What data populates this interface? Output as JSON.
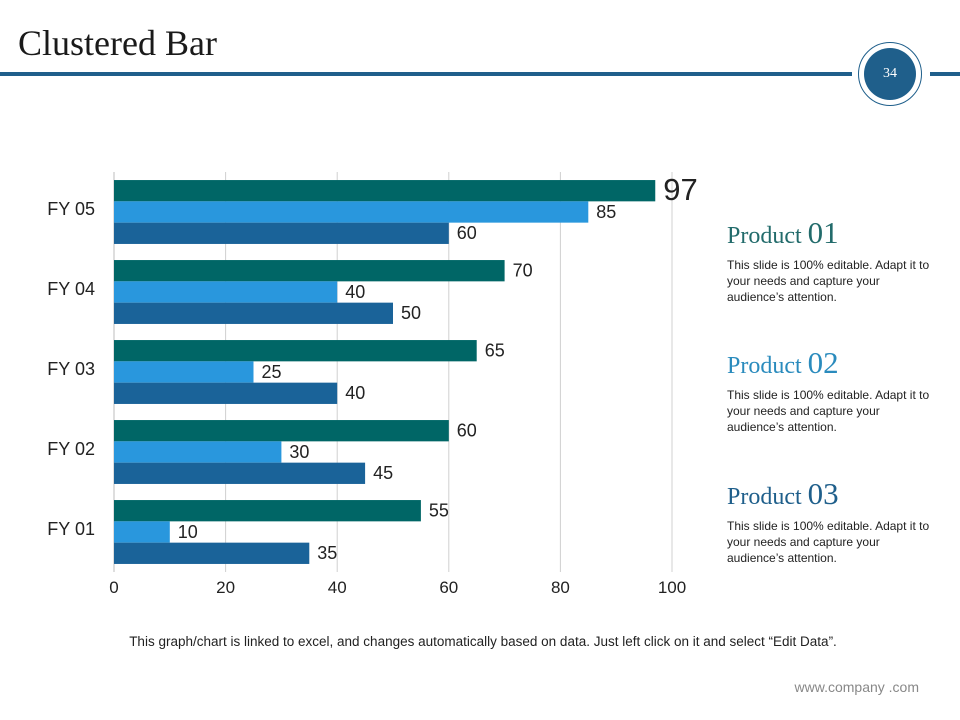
{
  "slide": {
    "title": "Clustered Bar",
    "page_number": "34",
    "footnote": "This graph/chart is linked to excel, and changes automatically based on data. Just left click on it and select “Edit Data”.",
    "website": "www.company .com"
  },
  "products": [
    {
      "name": "Product",
      "number": "01",
      "description": "This slide is 100% editable. Adapt it to your needs and capture your audience’s attention.",
      "color": "#226b6b"
    },
    {
      "name": "Product",
      "number": "02",
      "description": "This slide is 100% editable. Adapt it to your needs and capture your audience’s attention.",
      "color": "#2a8bbd"
    },
    {
      "name": "Product",
      "number": "03",
      "description": "This slide is 100% editable. Adapt it to your needs and capture your audience’s attention.",
      "color": "#1f5f8b"
    }
  ],
  "chart_data": {
    "type": "bar",
    "orientation": "horizontal",
    "title": "",
    "xlabel": "",
    "ylabel": "",
    "categories": [
      "FY 01",
      "FY 02",
      "FY 03",
      "FY 04",
      "FY 05"
    ],
    "series": [
      {
        "name": "Product 01",
        "color": "#006666",
        "values": [
          55,
          60,
          65,
          70,
          97
        ]
      },
      {
        "name": "Product 02",
        "color": "#2997dd",
        "values": [
          10,
          30,
          25,
          40,
          85
        ]
      },
      {
        "name": "Product 03",
        "color": "#1a6399",
        "values": [
          35,
          45,
          40,
          50,
          60
        ]
      }
    ],
    "xlim": [
      0,
      100
    ],
    "xticks": [
      0,
      20,
      40,
      60,
      80,
      100
    ],
    "highlight": {
      "category": "FY 05",
      "series": "Product 01"
    },
    "grid": true,
    "legend": "none"
  }
}
